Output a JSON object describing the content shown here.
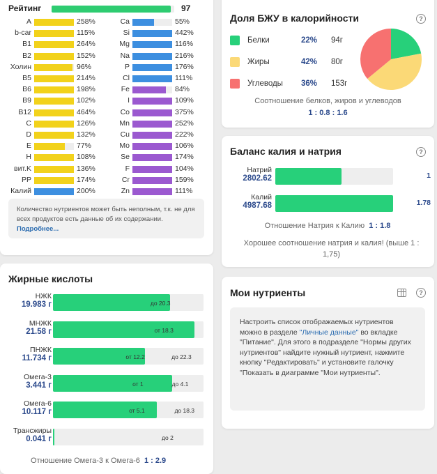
{
  "vitamins": {
    "rating_label": "Рейтинг",
    "rating_value": "97",
    "rating_fraction": 0.97,
    "left": [
      {
        "name": "A",
        "pct": "258%",
        "fill": 1.0,
        "color": "#f2d21b"
      },
      {
        "name": "b-car",
        "pct": "115%",
        "fill": 1.0,
        "color": "#f2d21b"
      },
      {
        "name": "B1",
        "pct": "264%",
        "fill": 1.0,
        "color": "#f2d21b"
      },
      {
        "name": "B2",
        "pct": "152%",
        "fill": 1.0,
        "color": "#f2d21b"
      },
      {
        "name": "Холин",
        "pct": "96%",
        "fill": 0.96,
        "color": "#f2d21b"
      },
      {
        "name": "B5",
        "pct": "214%",
        "fill": 1.0,
        "color": "#f2d21b"
      },
      {
        "name": "B6",
        "pct": "198%",
        "fill": 1.0,
        "color": "#f2d21b"
      },
      {
        "name": "B9",
        "pct": "102%",
        "fill": 1.0,
        "color": "#f2d21b"
      },
      {
        "name": "B12",
        "pct": "464%",
        "fill": 1.0,
        "color": "#f2d21b"
      },
      {
        "name": "C",
        "pct": "126%",
        "fill": 1.0,
        "color": "#f2d21b"
      },
      {
        "name": "D",
        "pct": "132%",
        "fill": 1.0,
        "color": "#f2d21b"
      },
      {
        "name": "E",
        "pct": "77%",
        "fill": 0.77,
        "color": "#f2d21b"
      },
      {
        "name": "H",
        "pct": "108%",
        "fill": 1.0,
        "color": "#f2d21b"
      },
      {
        "name": "вит.K",
        "pct": "136%",
        "fill": 1.0,
        "color": "#f2d21b"
      },
      {
        "name": "PP",
        "pct": "174%",
        "fill": 1.0,
        "color": "#f2d21b"
      },
      {
        "name": "Калий",
        "pct": "200%",
        "fill": 1.0,
        "color": "#3d8fe0"
      }
    ],
    "right": [
      {
        "name": "Ca",
        "pct": "55%",
        "fill": 0.55,
        "color": "#3d8fe0"
      },
      {
        "name": "Si",
        "pct": "442%",
        "fill": 1.0,
        "color": "#3d8fe0"
      },
      {
        "name": "Mg",
        "pct": "116%",
        "fill": 1.0,
        "color": "#3d8fe0"
      },
      {
        "name": "Na",
        "pct": "216%",
        "fill": 1.0,
        "color": "#3d8fe0"
      },
      {
        "name": "P",
        "pct": "176%",
        "fill": 1.0,
        "color": "#3d8fe0"
      },
      {
        "name": "Cl",
        "pct": "111%",
        "fill": 1.0,
        "color": "#3d8fe0"
      },
      {
        "name": "Fe",
        "pct": "84%",
        "fill": 0.84,
        "color": "#9b59d0"
      },
      {
        "name": "I",
        "pct": "109%",
        "fill": 1.0,
        "color": "#9b59d0"
      },
      {
        "name": "Co",
        "pct": "375%",
        "fill": 1.0,
        "color": "#9b59d0"
      },
      {
        "name": "Mn",
        "pct": "252%",
        "fill": 1.0,
        "color": "#9b59d0"
      },
      {
        "name": "Cu",
        "pct": "222%",
        "fill": 1.0,
        "color": "#9b59d0"
      },
      {
        "name": "Mo",
        "pct": "106%",
        "fill": 1.0,
        "color": "#9b59d0"
      },
      {
        "name": "Se",
        "pct": "174%",
        "fill": 1.0,
        "color": "#9b59d0"
      },
      {
        "name": "F",
        "pct": "104%",
        "fill": 1.0,
        "color": "#9b59d0"
      },
      {
        "name": "Cr",
        "pct": "159%",
        "fill": 1.0,
        "color": "#9b59d0"
      },
      {
        "name": "Zn",
        "pct": "111%",
        "fill": 1.0,
        "color": "#9b59d0"
      }
    ],
    "note_text": "Количество нутриентов может быть неполным, т.к. не для всех продуктов есть данные об их содержании.",
    "note_link": "Подробнее..."
  },
  "fatty": {
    "title": "Жирные кислоты",
    "rows": [
      {
        "name": "НЖК",
        "value": "19.983 г",
        "fill": 0.78,
        "marks": [
          {
            "label": "до 20.3",
            "at": 0.78
          }
        ]
      },
      {
        "name": "МНЖК",
        "value": "21.58 г",
        "fill": 0.94,
        "marks": [
          {
            "label": "от 18.3",
            "at": 0.8
          }
        ]
      },
      {
        "name": "ПНЖК",
        "value": "11.734 г",
        "fill": 0.61,
        "marks": [
          {
            "label": "от 12.2",
            "at": 0.61
          },
          {
            "label": "до 22.3",
            "at": 0.92
          }
        ]
      },
      {
        "name": "Омега-3",
        "value": "3.441 г",
        "fill": 0.79,
        "marks": [
          {
            "label": "от 1",
            "at": 0.6
          },
          {
            "label": "до 4.1",
            "at": 0.9
          }
        ]
      },
      {
        "name": "Омега-6",
        "value": "10.117 г",
        "fill": 0.69,
        "marks": [
          {
            "label": "от 5.1",
            "at": 0.61
          },
          {
            "label": "до 18.3",
            "at": 0.94
          }
        ]
      },
      {
        "name": "Трансжиры",
        "value": "0.041 г",
        "fill": 0.01,
        "marks": [
          {
            "label": "до 2",
            "at": 0.8
          }
        ]
      }
    ],
    "ratio_label": "Отношение Омега-3 к Омега-6",
    "ratio_value": "1 : 2.9"
  },
  "macro": {
    "title": "Доля БЖУ в калорийности",
    "items": [
      {
        "name": "Белки",
        "pct": "22%",
        "grams": "94г",
        "color": "#27d07a",
        "share": 22
      },
      {
        "name": "Жиры",
        "pct": "42%",
        "grams": "80г",
        "color": "#fbd977",
        "share": 42
      },
      {
        "name": "Углеводы",
        "pct": "36%",
        "grams": "153г",
        "color": "#f77170",
        "share": 36
      }
    ],
    "ratio_label": "Соотношение белков, жиров и углеводов",
    "ratio_value": "1 : 0.8 : 1.6"
  },
  "kna": {
    "title": "Баланс калия и натрия",
    "rows": [
      {
        "name": "Натрий",
        "value": "2802.62",
        "fill": 0.56,
        "ratio": "1"
      },
      {
        "name": "Калий",
        "value": "4987.68",
        "fill": 1.0,
        "ratio": "1.78"
      }
    ],
    "ratio_label": "Отношение Натрия к Калию",
    "ratio_value": "1 : 1.8",
    "comment": "Хорошее соотношение натрия и калия! (выше 1 : 1,75)"
  },
  "my": {
    "title": "Мои нутриенты",
    "text1": "Настроить список отображаемых нутриентов можно в разделе ",
    "link": "\"Личные данные\"",
    "text2": " во вкладке \"Питание\". Для этого в подразделе \"Нормы других нутриентов\" найдите нужный нутриент, нажмите кнопку \"Редактировать\" и установите галочку \"Показать в диаграмме \"Мои нутриенты\"."
  },
  "help_glyph": "?",
  "icons": {
    "help": "question-circle-icon",
    "table": "table-icon"
  }
}
